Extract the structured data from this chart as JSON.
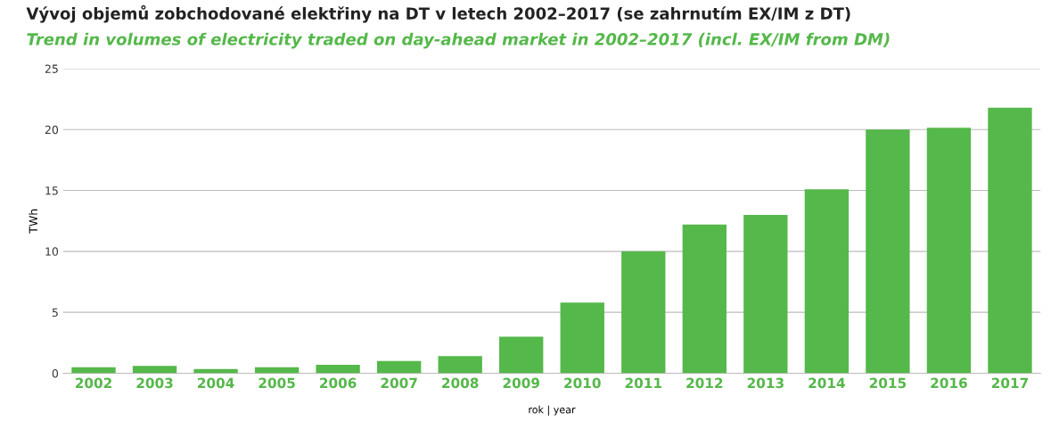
{
  "chart_data": {
    "type": "bar",
    "title": "Vývoj objemů zobchodované elektřiny na DT v letech 2002–2017 (se zahrnutím EX/IM z DT)",
    "subtitle": "Trend in volumes of electricity traded on day-ahead market in 2002–2017 (incl. EX/IM from DM)",
    "xlabel": "rok | year",
    "ylabel": "TWh",
    "categories": [
      "2002",
      "2003",
      "2004",
      "2005",
      "2006",
      "2007",
      "2008",
      "2009",
      "2010",
      "2011",
      "2012",
      "2013",
      "2014",
      "2015",
      "2016",
      "2017"
    ],
    "values": [
      0.5,
      0.6,
      0.35,
      0.5,
      0.7,
      1.0,
      1.4,
      3.0,
      5.8,
      10.0,
      12.2,
      13.0,
      15.1,
      20.0,
      20.15,
      21.8
    ],
    "color": "#55b84a",
    "ylim": [
      0,
      25
    ],
    "yticks": [
      0,
      5,
      10,
      15,
      20,
      25
    ],
    "grid": "y"
  }
}
